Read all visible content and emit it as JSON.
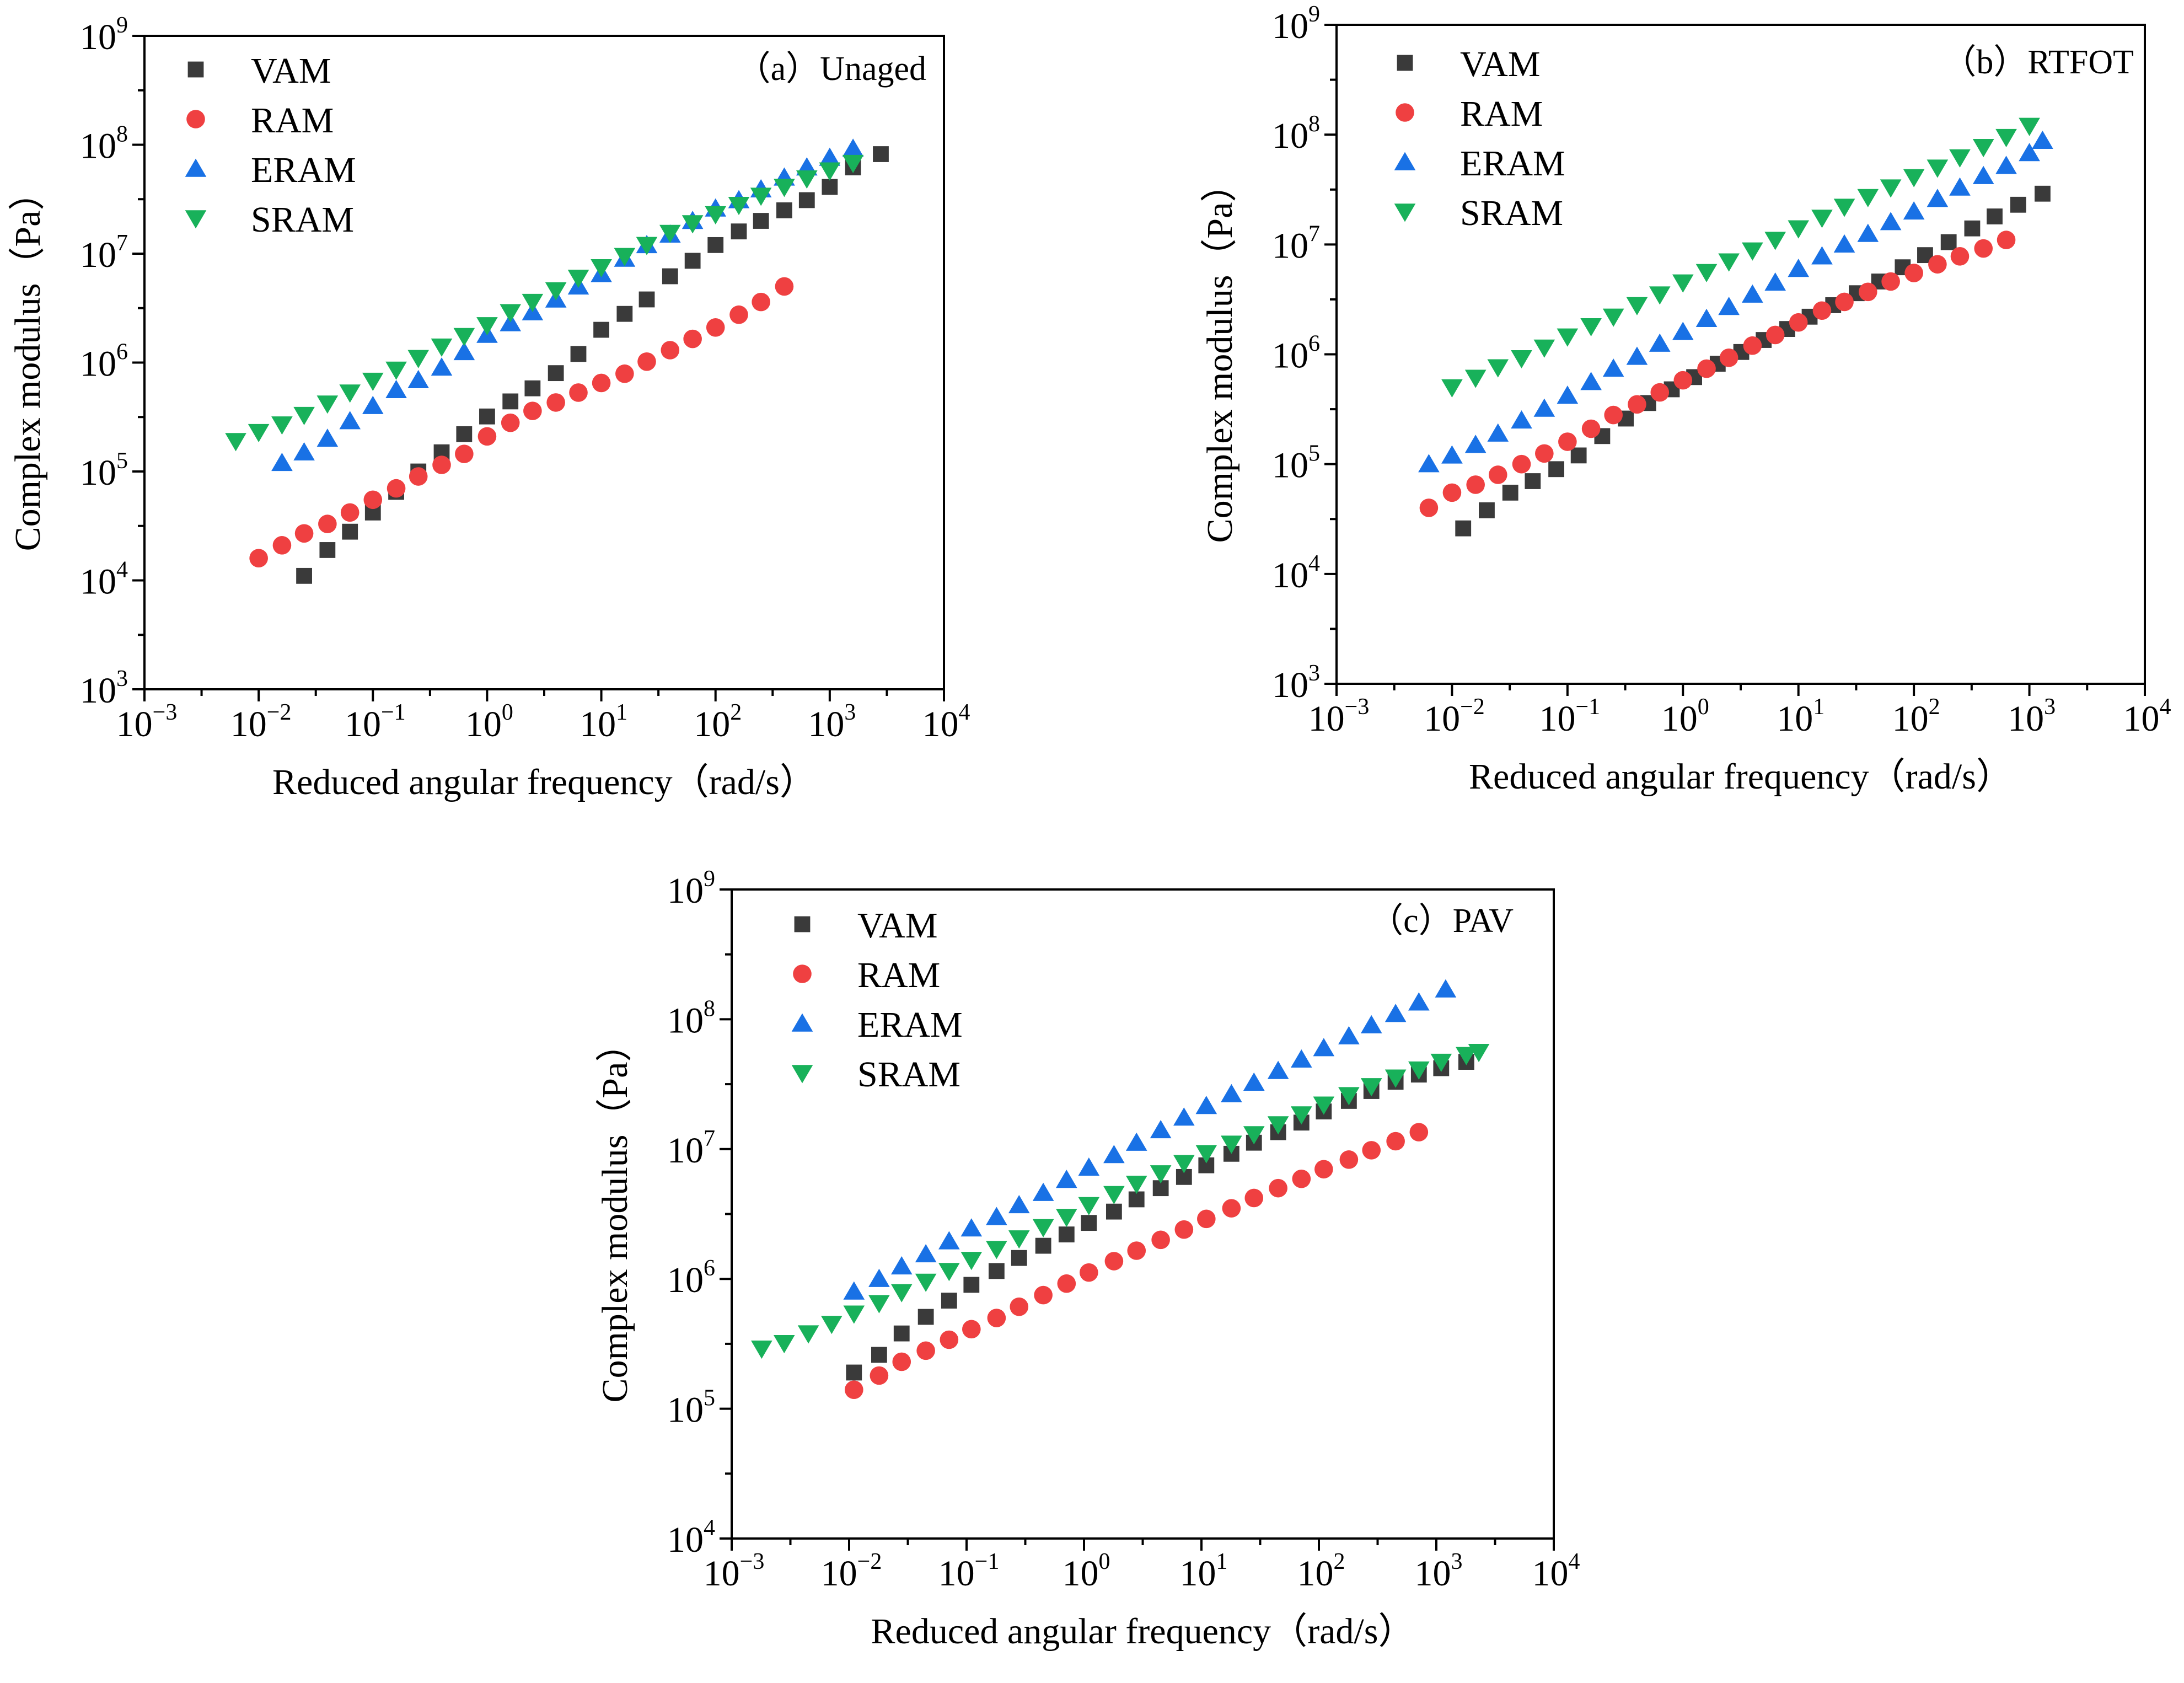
{
  "chart_data": [
    {
      "type": "scatter",
      "panel_label": "（a）Unaged",
      "xlabel": "Reduced angular frequency（rad/s）",
      "ylabel": "Complex modulus（Pa）",
      "x_scale": "log",
      "y_scale": "log",
      "xlim": [
        0.001,
        10000
      ],
      "ylim": [
        1000,
        1000000000
      ],
      "x_ticks": [
        {
          "value": 0.001,
          "base": "10",
          "exp": "−3"
        },
        {
          "value": 0.01,
          "base": "10",
          "exp": "−2"
        },
        {
          "value": 0.1,
          "base": "10",
          "exp": "−1"
        },
        {
          "value": 1,
          "base": "10",
          "exp": "0"
        },
        {
          "value": 10,
          "base": "10",
          "exp": "1"
        },
        {
          "value": 100,
          "base": "10",
          "exp": "2"
        },
        {
          "value": 1000,
          "base": "10",
          "exp": "3"
        },
        {
          "value": 10000,
          "base": "10",
          "exp": "4"
        }
      ],
      "y_ticks": [
        {
          "value": 1000,
          "base": "10",
          "exp": "3"
        },
        {
          "value": 10000,
          "base": "10",
          "exp": "4"
        },
        {
          "value": 100000,
          "base": "10",
          "exp": "5"
        },
        {
          "value": 1000000,
          "base": "10",
          "exp": "6"
        },
        {
          "value": 10000000,
          "base": "10",
          "exp": "7"
        },
        {
          "value": 100000000,
          "base": "10",
          "exp": "8"
        },
        {
          "value": 1000000000,
          "base": "10",
          "exp": "9"
        }
      ],
      "legend_position": "top-left",
      "series": [
        {
          "name": "VAM",
          "marker": "square",
          "color": "#3a3a3a",
          "x": [
            0.025,
            0.04,
            0.063,
            0.1,
            0.16,
            0.25,
            0.4,
            0.63,
            1.0,
            1.6,
            2.5,
            4.0,
            6.3,
            10,
            16,
            25,
            40,
            63,
            100,
            160,
            250,
            400,
            630,
            1000,
            1600,
            2800
          ],
          "y": [
            11000,
            19000,
            28000,
            42000,
            65000,
            100000,
            150000,
            220000,
            320000,
            440000,
            580000,
            800000,
            1200000,
            2000000,
            2800000,
            3800000,
            6200000,
            8600000,
            12000000,
            16000000,
            20000000,
            25000000,
            31000000,
            41000000,
            62000000,
            82000000
          ]
        },
        {
          "name": "RAM",
          "marker": "circle",
          "color": "#ef4041",
          "x": [
            0.01,
            0.016,
            0.025,
            0.04,
            0.063,
            0.1,
            0.16,
            0.25,
            0.4,
            0.63,
            1.0,
            1.6,
            2.5,
            4.0,
            6.3,
            10,
            16,
            25,
            40,
            63,
            100,
            160,
            250,
            400
          ],
          "y": [
            16000,
            21000,
            27000,
            33000,
            42000,
            55000,
            70000,
            90000,
            115000,
            145000,
            210000,
            280000,
            360000,
            430000,
            530000,
            650000,
            790000,
            1020000,
            1300000,
            1650000,
            2100000,
            2750000,
            3600000,
            5000000
          ]
        },
        {
          "name": "ERAM",
          "marker": "triangle-up",
          "color": "#1971e5",
          "x": [
            0.016,
            0.025,
            0.04,
            0.063,
            0.1,
            0.16,
            0.25,
            0.4,
            0.63,
            1.0,
            1.6,
            2.5,
            4.0,
            6.3,
            10,
            16,
            25,
            40,
            63,
            100,
            160,
            250,
            400,
            630,
            1000,
            1600
          ],
          "y": [
            120000,
            150000,
            200000,
            290000,
            400000,
            560000,
            690000,
            900000,
            1250000,
            1800000,
            2300000,
            2900000,
            3800000,
            5000000,
            6500000,
            9000000,
            12000000,
            15000000,
            20000000,
            26000000,
            31000000,
            39000000,
            50000000,
            62000000,
            76000000,
            92000000
          ]
        },
        {
          "name": "SRAM",
          "marker": "triangle-down",
          "color": "#18b15a",
          "x": [
            0.0063,
            0.01,
            0.016,
            0.025,
            0.04,
            0.063,
            0.1,
            0.16,
            0.25,
            0.4,
            0.63,
            1.0,
            1.6,
            2.5,
            4.0,
            6.3,
            10,
            16,
            25,
            40,
            63,
            100,
            160,
            250,
            400,
            630,
            1000,
            1600
          ],
          "y": [
            190000,
            230000,
            270000,
            330000,
            420000,
            530000,
            680000,
            860000,
            1100000,
            1400000,
            1750000,
            2200000,
            2900000,
            3600000,
            4600000,
            6000000,
            7500000,
            9500000,
            12000000,
            15500000,
            19000000,
            23000000,
            28000000,
            34000000,
            41000000,
            49000000,
            58000000,
            68000000
          ]
        }
      ]
    },
    {
      "type": "scatter",
      "panel_label": "（b）RTFOT",
      "xlabel": "Reduced angular frequency（rad/s）",
      "ylabel": "Complex modulus（Pa）",
      "x_scale": "log",
      "y_scale": "log",
      "xlim": [
        0.001,
        10000
      ],
      "ylim": [
        1000,
        1000000000
      ],
      "x_ticks": [
        {
          "value": 0.001,
          "base": "10",
          "exp": "−3"
        },
        {
          "value": 0.01,
          "base": "10",
          "exp": "−2"
        },
        {
          "value": 0.1,
          "base": "10",
          "exp": "−1"
        },
        {
          "value": 1,
          "base": "10",
          "exp": "0"
        },
        {
          "value": 10,
          "base": "10",
          "exp": "1"
        },
        {
          "value": 100,
          "base": "10",
          "exp": "2"
        },
        {
          "value": 1000,
          "base": "10",
          "exp": "3"
        },
        {
          "value": 10000,
          "base": "10",
          "exp": "4"
        }
      ],
      "y_ticks": [
        {
          "value": 1000,
          "base": "10",
          "exp": "3"
        },
        {
          "value": 10000,
          "base": "10",
          "exp": "4"
        },
        {
          "value": 100000,
          "base": "10",
          "exp": "5"
        },
        {
          "value": 1000000,
          "base": "10",
          "exp": "6"
        },
        {
          "value": 10000000,
          "base": "10",
          "exp": "7"
        },
        {
          "value": 100000000,
          "base": "10",
          "exp": "8"
        },
        {
          "value": 1000000000,
          "base": "10",
          "exp": "9"
        }
      ],
      "legend_position": "top-left",
      "series": [
        {
          "name": "VAM",
          "marker": "square",
          "color": "#3a3a3a",
          "x": [
            0.0125,
            0.02,
            0.032,
            0.05,
            0.08,
            0.125,
            0.2,
            0.32,
            0.5,
            0.8,
            1.25,
            2.0,
            3.2,
            5.0,
            8.0,
            12.5,
            20,
            32,
            50,
            80,
            125,
            200,
            320,
            500,
            800,
            1300
          ],
          "y": [
            26000,
            38000,
            55000,
            70000,
            90000,
            120000,
            180000,
            260000,
            360000,
            480000,
            620000,
            820000,
            1050000,
            1350000,
            1700000,
            2200000,
            2800000,
            3600000,
            4600000,
            6200000,
            8000000,
            10500000,
            14000000,
            18000000,
            23000000,
            29000000
          ]
        },
        {
          "name": "RAM",
          "marker": "circle",
          "color": "#ef4041",
          "x": [
            0.0063,
            0.01,
            0.016,
            0.025,
            0.04,
            0.063,
            0.1,
            0.16,
            0.25,
            0.4,
            0.63,
            1.0,
            1.6,
            2.5,
            4.0,
            6.3,
            10,
            16,
            25,
            40,
            63,
            100,
            160,
            250,
            400,
            630
          ],
          "y": [
            40000,
            55000,
            65000,
            80000,
            100000,
            125000,
            160000,
            210000,
            280000,
            350000,
            450000,
            580000,
            740000,
            930000,
            1200000,
            1500000,
            1950000,
            2500000,
            3000000,
            3700000,
            4600000,
            5500000,
            6600000,
            7800000,
            9200000,
            11000000
          ]
        },
        {
          "name": "ERAM",
          "marker": "triangle-up",
          "color": "#1971e5",
          "x": [
            0.0063,
            0.01,
            0.016,
            0.025,
            0.04,
            0.063,
            0.1,
            0.16,
            0.25,
            0.4,
            0.63,
            1.0,
            1.6,
            2.5,
            4.0,
            6.3,
            10,
            16,
            25,
            40,
            63,
            100,
            160,
            250,
            400,
            630,
            1000,
            1300
          ],
          "y": [
            100000,
            120000,
            150000,
            190000,
            250000,
            320000,
            420000,
            560000,
            740000,
            950000,
            1250000,
            1600000,
            2100000,
            2700000,
            3500000,
            4500000,
            6000000,
            7800000,
            10000000,
            12500000,
            16000000,
            20000000,
            26000000,
            33000000,
            42000000,
            52000000,
            68000000,
            88000000
          ]
        },
        {
          "name": "SRAM",
          "marker": "triangle-down",
          "color": "#18b15a",
          "x": [
            0.01,
            0.016,
            0.025,
            0.04,
            0.063,
            0.1,
            0.16,
            0.25,
            0.4,
            0.63,
            1.0,
            1.6,
            2.5,
            4.0,
            6.3,
            10,
            16,
            25,
            40,
            63,
            100,
            160,
            250,
            400,
            630,
            1000
          ],
          "y": [
            500000,
            610000,
            760000,
            920000,
            1150000,
            1450000,
            1800000,
            2200000,
            2800000,
            3500000,
            4500000,
            5600000,
            7000000,
            8800000,
            11000000,
            14000000,
            17500000,
            22000000,
            27000000,
            33000000,
            41000000,
            50000000,
            62000000,
            77000000,
            95000000,
            120000000
          ]
        }
      ]
    },
    {
      "type": "scatter",
      "panel_label": "（c）PAV",
      "xlabel": "Reduced angular frequency（rad/s）",
      "ylabel": "Complex modulus（Pa）",
      "x_scale": "log",
      "y_scale": "log",
      "xlim": [
        0.001,
        10000
      ],
      "ylim": [
        10000,
        1000000000
      ],
      "x_ticks": [
        {
          "value": 0.001,
          "base": "10",
          "exp": "−3"
        },
        {
          "value": 0.01,
          "base": "10",
          "exp": "−2"
        },
        {
          "value": 0.1,
          "base": "10",
          "exp": "−1"
        },
        {
          "value": 1,
          "base": "10",
          "exp": "0"
        },
        {
          "value": 10,
          "base": "10",
          "exp": "1"
        },
        {
          "value": 100,
          "base": "10",
          "exp": "2"
        },
        {
          "value": 1000,
          "base": "10",
          "exp": "3"
        },
        {
          "value": 10000,
          "base": "10",
          "exp": "4"
        }
      ],
      "y_ticks": [
        {
          "value": 10000,
          "base": "10",
          "exp": "4"
        },
        {
          "value": 100000,
          "base": "10",
          "exp": "5"
        },
        {
          "value": 1000000,
          "base": "10",
          "exp": "6"
        },
        {
          "value": 10000000,
          "base": "10",
          "exp": "7"
        },
        {
          "value": 100000000,
          "base": "10",
          "exp": "8"
        },
        {
          "value": 1000000000,
          "base": "10",
          "exp": "9"
        }
      ],
      "legend_position": "top-left",
      "series": [
        {
          "name": "VAM",
          "marker": "square",
          "color": "#3a3a3a",
          "x": [
            0.011,
            0.018,
            0.028,
            0.045,
            0.071,
            0.11,
            0.18,
            0.28,
            0.45,
            0.71,
            1.1,
            1.8,
            2.8,
            4.5,
            7.1,
            11,
            18,
            28,
            45,
            71,
            110,
            180,
            280,
            450,
            710,
            1100,
            1800
          ],
          "y": [
            190000,
            260000,
            380000,
            510000,
            680000,
            900000,
            1150000,
            1450000,
            1800000,
            2200000,
            2700000,
            3300000,
            4100000,
            5000000,
            6100000,
            7500000,
            9200000,
            11200000,
            13500000,
            16000000,
            19500000,
            23500000,
            28000000,
            33000000,
            37500000,
            42000000,
            47000000
          ]
        },
        {
          "name": "RAM",
          "marker": "circle",
          "color": "#ef4041",
          "x": [
            0.011,
            0.018,
            0.028,
            0.045,
            0.071,
            0.11,
            0.18,
            0.28,
            0.45,
            0.71,
            1.1,
            1.8,
            2.8,
            4.5,
            7.1,
            11,
            18,
            28,
            45,
            71,
            110,
            180,
            280,
            450,
            710
          ],
          "y": [
            140000,
            180000,
            230000,
            280000,
            340000,
            410000,
            500000,
            610000,
            750000,
            920000,
            1120000,
            1370000,
            1650000,
            2000000,
            2400000,
            2900000,
            3500000,
            4200000,
            5000000,
            5900000,
            7000000,
            8300000,
            9800000,
            11500000,
            13500000
          ]
        },
        {
          "name": "ERAM",
          "marker": "triangle-up",
          "color": "#1971e5",
          "x": [
            0.011,
            0.018,
            0.028,
            0.045,
            0.071,
            0.11,
            0.18,
            0.28,
            0.45,
            0.71,
            1.1,
            1.8,
            2.8,
            4.5,
            7.1,
            11,
            18,
            28,
            45,
            71,
            110,
            180,
            280,
            450,
            710,
            1200
          ],
          "y": [
            800000,
            1000000,
            1250000,
            1550000,
            1950000,
            2450000,
            3000000,
            3700000,
            4600000,
            5800000,
            7200000,
            9000000,
            11200000,
            14000000,
            17500000,
            21500000,
            26500000,
            32500000,
            40000000,
            49000000,
            60000000,
            74000000,
            90000000,
            110000000,
            135000000,
            170000000
          ]
        },
        {
          "name": "SRAM",
          "marker": "triangle-down",
          "color": "#18b15a",
          "x": [
            0.0018,
            0.0028,
            0.0045,
            0.0071,
            0.011,
            0.018,
            0.028,
            0.045,
            0.071,
            0.11,
            0.18,
            0.28,
            0.45,
            0.71,
            1.1,
            1.8,
            2.8,
            4.5,
            7.1,
            11,
            18,
            28,
            45,
            71,
            110,
            180,
            280,
            450,
            710,
            1100,
            1800,
            2300
          ],
          "y": [
            290000,
            320000,
            380000,
            450000,
            540000,
            650000,
            790000,
            950000,
            1150000,
            1400000,
            1700000,
            2050000,
            2500000,
            3000000,
            3700000,
            4500000,
            5400000,
            6500000,
            7800000,
            9300000,
            11000000,
            13000000,
            15500000,
            18500000,
            22000000,
            26000000,
            30500000,
            35500000,
            41000000,
            47000000,
            53000000,
            56000000
          ]
        }
      ]
    }
  ]
}
